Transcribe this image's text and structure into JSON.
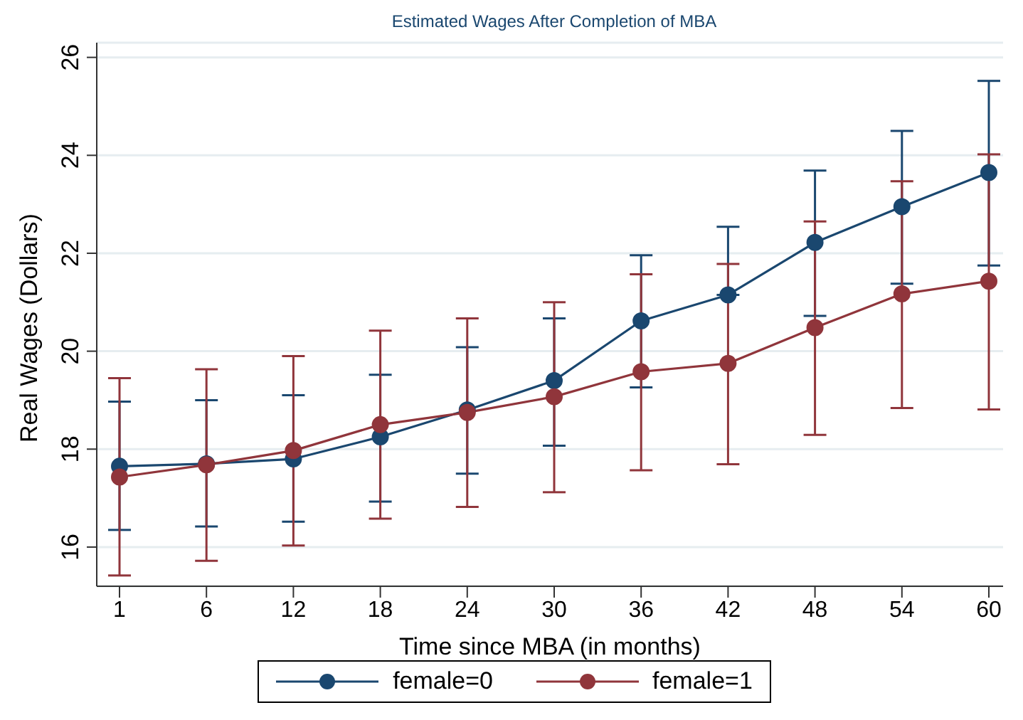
{
  "chart_data": {
    "type": "line",
    "title": "Estimated Wages After Completion of MBA",
    "xlabel": "Time since MBA (in months)",
    "ylabel": "Real Wages (Dollars)",
    "categories": [
      "1",
      "6",
      "12",
      "18",
      "24",
      "30",
      "36",
      "42",
      "48",
      "54",
      "60"
    ],
    "series": [
      {
        "name": "female=0",
        "color": "#1a476f",
        "values": [
          17.65,
          17.7,
          17.8,
          18.25,
          18.8,
          19.4,
          20.62,
          21.15,
          22.22,
          22.95,
          23.65
        ],
        "errors": [
          [
            16.35,
            18.97
          ],
          [
            16.42,
            19.0
          ],
          [
            16.52,
            19.1
          ],
          [
            16.93,
            19.52
          ],
          [
            17.5,
            20.08
          ],
          [
            18.07,
            20.67
          ],
          [
            19.26,
            21.96
          ],
          [
            21.15,
            22.54
          ],
          [
            20.72,
            23.69
          ],
          [
            21.38,
            24.5
          ],
          [
            21.75,
            25.52
          ]
        ]
      },
      {
        "name": "female=1",
        "color": "#90353b",
        "values": [
          17.43,
          17.68,
          17.97,
          18.5,
          18.75,
          19.07,
          19.58,
          19.75,
          20.48,
          21.17,
          21.43
        ],
        "errors": [
          [
            15.42,
            19.45
          ],
          [
            15.72,
            19.63
          ],
          [
            16.03,
            19.9
          ],
          [
            16.58,
            20.42
          ],
          [
            16.82,
            20.67
          ],
          [
            17.12,
            21.0
          ],
          [
            17.57,
            21.57
          ],
          [
            17.69,
            21.78
          ],
          [
            18.29,
            22.65
          ],
          [
            18.84,
            23.47
          ],
          [
            18.81,
            24.02
          ]
        ]
      }
    ],
    "ylim": [
      15.2,
      26.3
    ],
    "yticks": [
      16,
      18,
      20,
      22,
      24,
      26
    ],
    "grid": "y",
    "legend": "bottom",
    "marker": "circle",
    "line_style": "solid"
  }
}
